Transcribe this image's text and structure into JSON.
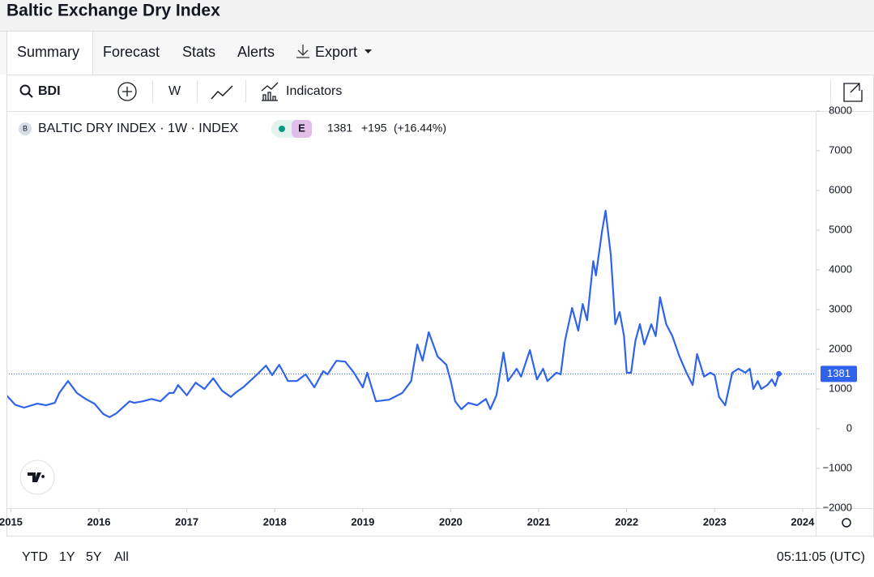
{
  "header": {
    "title": "Baltic Exchange Dry Index"
  },
  "tabs": [
    "Summary",
    "Forecast",
    "Stats",
    "Alerts",
    "Export"
  ],
  "toolbar": {
    "symbol": "BDI",
    "interval": "W",
    "indicators": "Indicators"
  },
  "legend": {
    "icon": "B",
    "name": "BALTIC DRY INDEX · 1W · INDEX",
    "badge": "E",
    "change": "+195",
    "change_pct": "(+16.44%)"
  },
  "chart_data": {
    "type": "line",
    "color": "#2f63ea",
    "x": [
      2014.95,
      2015.05,
      2015.15,
      2015.3,
      2015.4,
      2015.5,
      2015.55,
      2015.65,
      2015.75,
      2015.85,
      2015.95,
      2016.05,
      2016.12,
      2016.2,
      2016.3,
      2016.35,
      2016.4,
      2016.5,
      2016.6,
      2016.7,
      2016.8,
      2016.85,
      2016.9,
      2017.0,
      2017.1,
      2017.2,
      2017.3,
      2017.4,
      2017.5,
      2017.55,
      2017.65,
      2017.8,
      2017.9,
      2017.97,
      2018.05,
      2018.1,
      2018.15,
      2018.25,
      2018.35,
      2018.45,
      2018.55,
      2018.6,
      2018.7,
      2018.8,
      2018.9,
      2019.0,
      2019.05,
      2019.15,
      2019.3,
      2019.45,
      2019.55,
      2019.62,
      2019.68,
      2019.75,
      2019.85,
      2019.95,
      2020.0,
      2020.05,
      2020.12,
      2020.2,
      2020.3,
      2020.4,
      2020.45,
      2020.52,
      2020.6,
      2020.65,
      2020.75,
      2020.8,
      2020.9,
      2020.98,
      2021.05,
      2021.1,
      2021.2,
      2021.25,
      2021.3,
      2021.38,
      2021.45,
      2021.5,
      2021.55,
      2021.62,
      2021.65,
      2021.72,
      2021.76,
      2021.82,
      2021.87,
      2021.92,
      2021.97,
      2022.0,
      2022.05,
      2022.1,
      2022.15,
      2022.2,
      2022.28,
      2022.33,
      2022.38,
      2022.45,
      2022.52,
      2022.6,
      2022.68,
      2022.75,
      2022.8,
      2022.88,
      2022.95,
      2023.0,
      2023.05,
      2023.12,
      2023.2,
      2023.27,
      2023.35,
      2023.4,
      2023.44,
      2023.49,
      2023.53,
      2023.6,
      2023.65,
      2023.69,
      2023.73
    ],
    "values": [
      840,
      600,
      530,
      630,
      590,
      650,
      900,
      1200,
      900,
      750,
      630,
      370,
      290,
      390,
      590,
      690,
      650,
      690,
      750,
      690,
      900,
      900,
      1100,
      840,
      1160,
      1000,
      1270,
      960,
      800,
      900,
      1060,
      1370,
      1590,
      1350,
      1610,
      1410,
      1200,
      1200,
      1370,
      1040,
      1450,
      1370,
      1710,
      1690,
      1410,
      1040,
      1410,
      690,
      730,
      900,
      1200,
      2120,
      1710,
      2430,
      1820,
      1610,
      1200,
      690,
      490,
      650,
      590,
      750,
      490,
      840,
      1920,
      1200,
      1510,
      1310,
      1980,
      1240,
      1510,
      1200,
      1410,
      1370,
      2220,
      3040,
      2470,
      3140,
      2730,
      4220,
      3860,
      4980,
      5490,
      4370,
      2630,
      2940,
      2330,
      1410,
      1410,
      2220,
      2630,
      2120,
      2630,
      2330,
      3310,
      2630,
      2330,
      1820,
      1410,
      1100,
      1880,
      1310,
      1410,
      1350,
      800,
      590,
      1410,
      1510,
      1410,
      1510,
      1000,
      1200,
      1000,
      1100,
      1240,
      1080,
      1381
    ],
    "xlim": [
      2014.95,
      2024.13
    ],
    "ylim": [
      -2000,
      8000
    ],
    "xticks": [
      2015,
      2016,
      2017,
      2018,
      2019,
      2020,
      2021,
      2022,
      2023,
      2024
    ],
    "yticks": [
      {
        "value": -2000,
        "label": "−2000"
      },
      {
        "value": -1000,
        "label": "−1000"
      },
      0,
      1000,
      2000,
      3000,
      4000,
      5000,
      6000,
      7000,
      8000
    ]
  },
  "footer": {
    "ranges": [
      "YTD",
      "1Y",
      "5Y",
      "All"
    ],
    "time": "05:11:05 (UTC)"
  }
}
